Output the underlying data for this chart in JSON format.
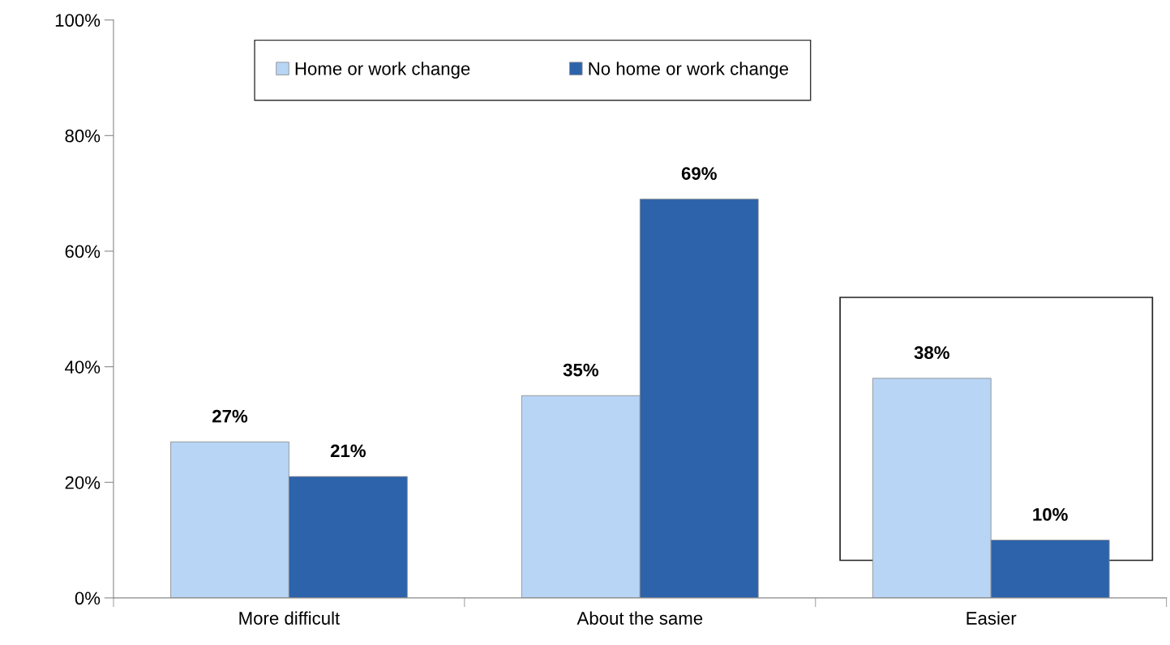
{
  "chart_data": {
    "type": "bar",
    "categories": [
      "More difficult",
      "About the same",
      "Easier"
    ],
    "series": [
      {
        "name": "Home or work change",
        "color": "#b8d5f6",
        "values": [
          27,
          35,
          38
        ],
        "value_labels": [
          "27%",
          "35%",
          "38%"
        ]
      },
      {
        "name": "No home or work change",
        "color": "#2c63ab",
        "values": [
          21,
          69,
          10
        ],
        "value_labels": [
          "21%",
          "69%",
          "10%"
        ]
      }
    ],
    "ylim": [
      0,
      100
    ],
    "yticks": [
      {
        "value": 0,
        "label": "0%"
      },
      {
        "value": 20,
        "label": "20%"
      },
      {
        "value": 40,
        "label": "40%"
      },
      {
        "value": 60,
        "label": "60%"
      },
      {
        "value": 80,
        "label": "80%"
      },
      {
        "value": 100,
        "label": "100%"
      }
    ],
    "legend": "top",
    "grid": false
  }
}
